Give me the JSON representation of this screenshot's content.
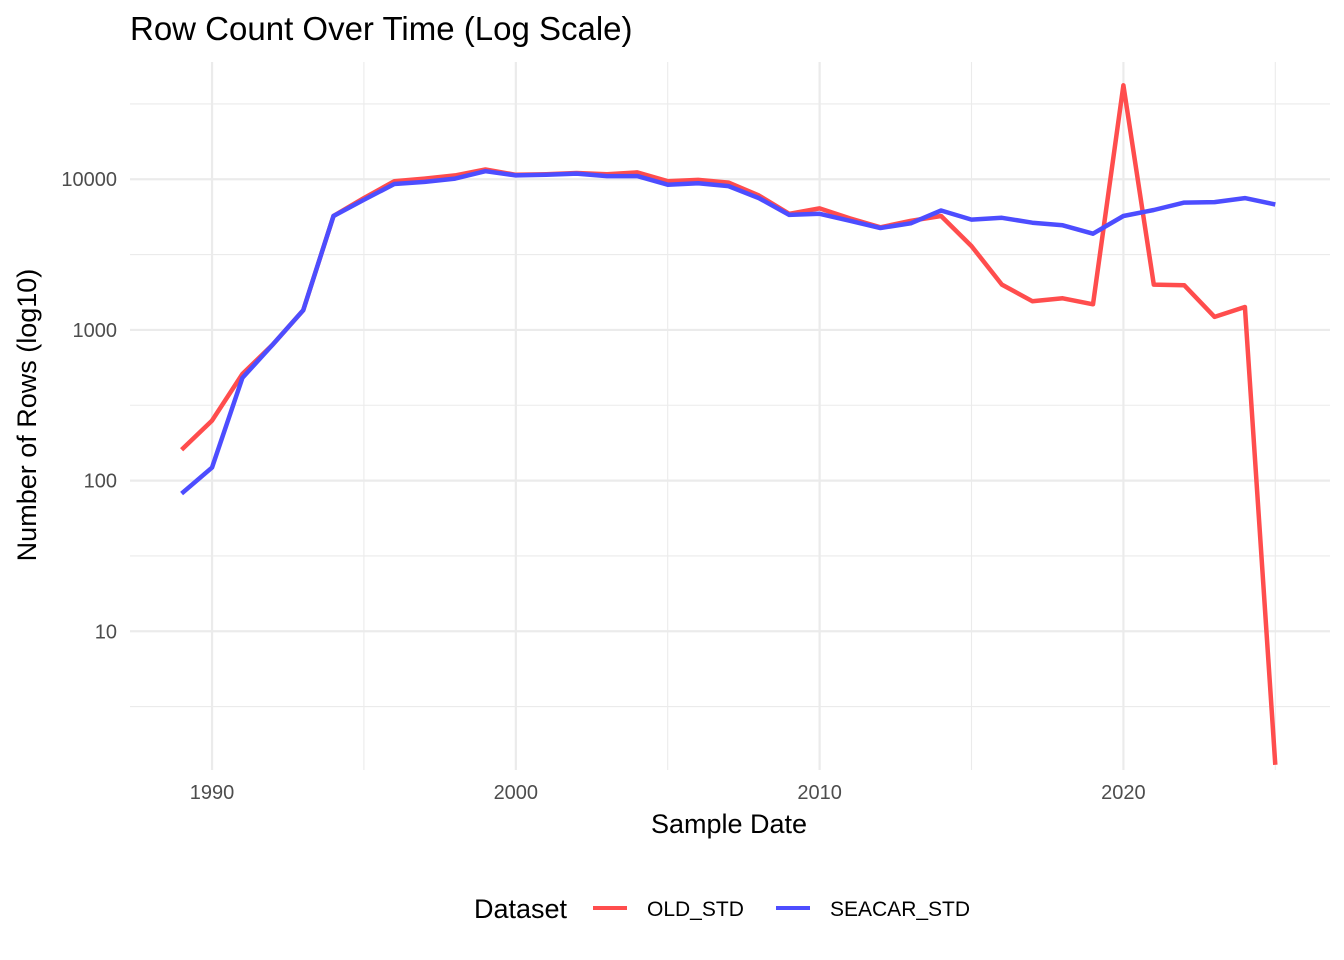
{
  "chart_data": {
    "type": "line",
    "title": "Row Count Over Time (Log Scale)",
    "xlabel": "Sample Date",
    "ylabel": "Number of Rows (log10)",
    "xlim": [
      1987.3,
      2026.8
    ],
    "ylim": [
      1.2,
      60000
    ],
    "y_scale": "log10",
    "x_ticks": [
      1990,
      2000,
      2010,
      2020
    ],
    "x_tick_labels": [
      "1990",
      "2000",
      "2010",
      "2020"
    ],
    "y_ticks": [
      10,
      100,
      1000,
      10000
    ],
    "y_tick_labels": [
      "10",
      "100",
      "1000",
      "10000"
    ],
    "legend": {
      "title": "Dataset",
      "position": "bottom"
    },
    "grid": true,
    "series": [
      {
        "name": "OLD_STD",
        "color": "#ff4d4d",
        "x": [
          1989,
          1990,
          1991,
          1992,
          1993,
          1994,
          1995,
          1996,
          1997,
          1998,
          1999,
          2000,
          2001,
          2002,
          2003,
          2004,
          2005,
          2006,
          2007,
          2008,
          2009,
          2010,
          2011,
          2012,
          2013,
          2014,
          2015,
          2016,
          2017,
          2018,
          2019,
          2020,
          2021,
          2022,
          2023,
          2024,
          2025
        ],
        "values": [
          160,
          250,
          510,
          800,
          1350,
          5700,
          7500,
          9700,
          10100,
          10600,
          11600,
          10700,
          10800,
          11000,
          10800,
          11100,
          9700,
          9900,
          9500,
          7800,
          5900,
          6400,
          5500,
          4800,
          5300,
          5700,
          3600,
          2000,
          1550,
          1620,
          1480,
          42000,
          2000,
          1980,
          1220,
          1420,
          1.3
        ]
      },
      {
        "name": "SEACAR_STD",
        "color": "#4d4dff",
        "x": [
          1989,
          1990,
          1991,
          1992,
          1993,
          1994,
          1995,
          1996,
          1997,
          1998,
          1999,
          2000,
          2001,
          2002,
          2003,
          2004,
          2005,
          2006,
          2007,
          2008,
          2009,
          2010,
          2011,
          2012,
          2013,
          2014,
          2015,
          2016,
          2017,
          2018,
          2019,
          2020,
          2021,
          2022,
          2023,
          2024,
          2025
        ],
        "values": [
          82,
          122,
          480,
          800,
          1350,
          5700,
          7300,
          9300,
          9600,
          10100,
          11300,
          10600,
          10700,
          10900,
          10500,
          10500,
          9200,
          9400,
          9000,
          7500,
          5800,
          5900,
          5300,
          4750,
          5100,
          6200,
          5400,
          5550,
          5150,
          4950,
          4350,
          5700,
          6250,
          7000,
          7050,
          7500,
          6800
        ]
      }
    ]
  }
}
